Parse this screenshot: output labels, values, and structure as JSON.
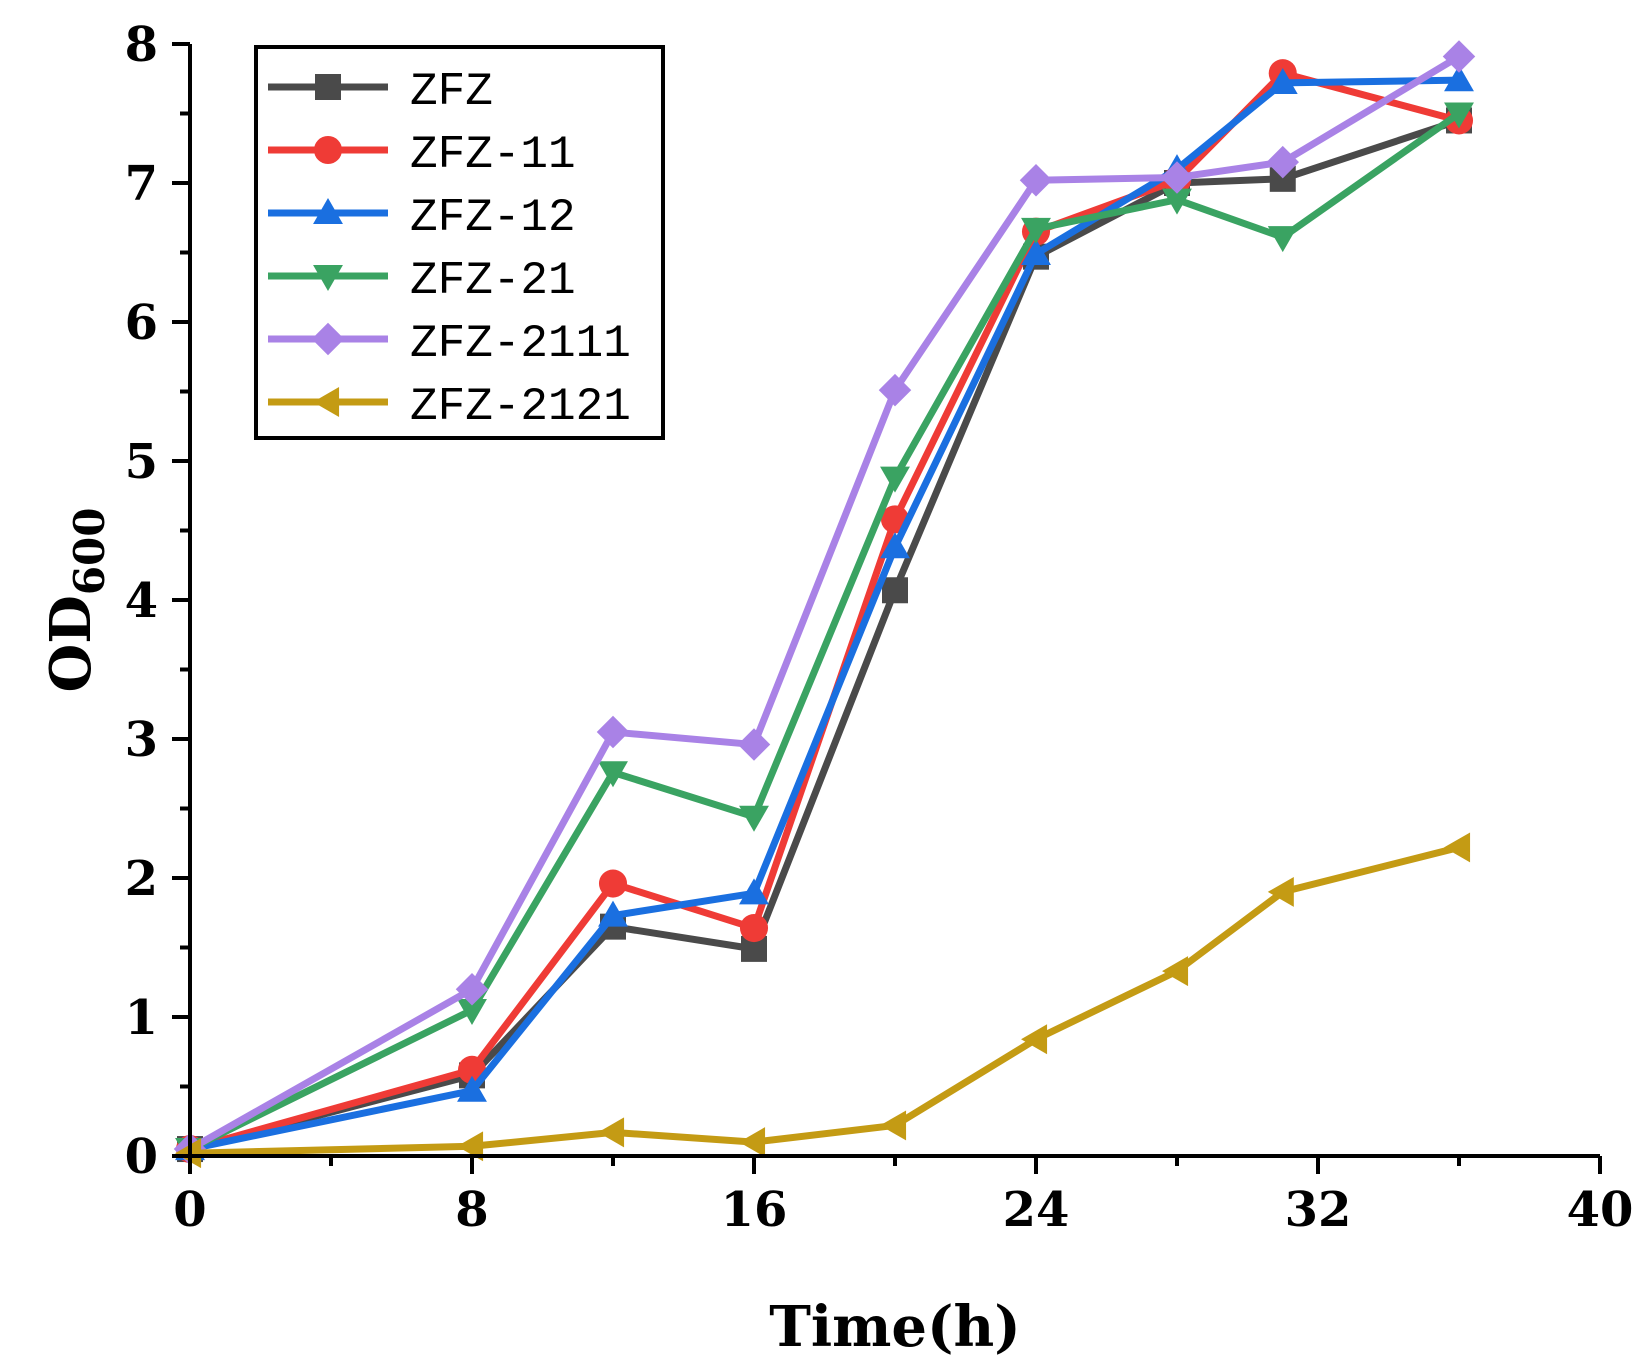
{
  "chart_data": {
    "type": "line",
    "title": "",
    "xlabel": "Time(h)",
    "ylabel_main": "OD",
    "ylabel_sub": "600",
    "xlim": [
      0,
      40
    ],
    "ylim": [
      0,
      8
    ],
    "x_ticks": [
      "0",
      "8",
      "16",
      "24",
      "32",
      "40"
    ],
    "y_ticks": [
      "0",
      "1",
      "2",
      "3",
      "4",
      "5",
      "6",
      "7",
      "8"
    ],
    "grid": false,
    "legend_position": "top-left",
    "x": [
      0,
      8,
      12,
      16,
      20,
      24,
      28,
      31,
      36
    ],
    "series": [
      {
        "name": "ZFZ",
        "color": "#4a4a4a",
        "marker": "square",
        "values": [
          0.05,
          0.58,
          1.65,
          1.49,
          4.07,
          6.47,
          7.0,
          7.03,
          7.45
        ]
      },
      {
        "name": "ZFZ-11",
        "color": "#ef3b36",
        "marker": "circle",
        "values": [
          0.05,
          0.62,
          1.96,
          1.64,
          4.58,
          6.65,
          7.02,
          7.79,
          7.45
        ]
      },
      {
        "name": "ZFZ-12",
        "color": "#1a6fe0",
        "marker": "triangle-up",
        "values": [
          0.05,
          0.47,
          1.73,
          1.89,
          4.38,
          6.49,
          7.1,
          7.72,
          7.74
        ]
      },
      {
        "name": "ZFZ-21",
        "color": "#3aa362",
        "marker": "triangle-down",
        "values": [
          0.05,
          1.05,
          2.76,
          2.44,
          4.88,
          6.67,
          6.88,
          6.61,
          7.5
        ]
      },
      {
        "name": "ZFZ-2111",
        "color": "#a982e6",
        "marker": "diamond",
        "values": [
          0.05,
          1.2,
          3.05,
          2.96,
          5.51,
          7.02,
          7.04,
          7.15,
          7.91
        ]
      },
      {
        "name": "ZFZ-2121",
        "color": "#c49b14",
        "marker": "triangle-left",
        "values": [
          0.02,
          0.07,
          0.17,
          0.1,
          0.22,
          0.84,
          1.33,
          1.9,
          2.22
        ]
      }
    ]
  }
}
